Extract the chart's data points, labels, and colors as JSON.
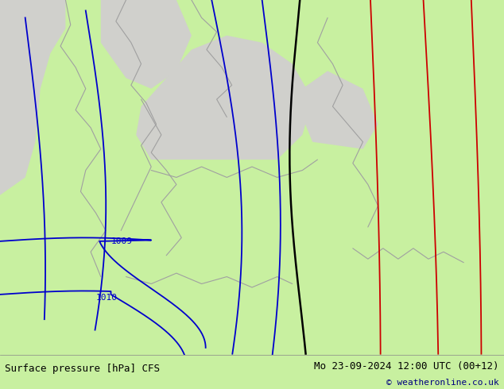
{
  "title_left": "Surface pressure [hPa] CFS",
  "title_right": "Mo 23-09-2024 12:00 UTC (00+12)",
  "copyright": "© weatheronline.co.uk",
  "land_color": "#c8f0a0",
  "sea_color": "#d0d0cc",
  "blue_isobar_color": "#0000cc",
  "black_isobar_color": "#000000",
  "red_isobar_color": "#cc0000",
  "coast_color": "#a0a0a0",
  "fig_width": 6.34,
  "fig_height": 4.9,
  "dpi": 100,
  "bottom_bar_color": "#ffffff",
  "bottom_bar_height": 0.088,
  "text_color": "#000000",
  "title_fontsize": 9,
  "copyright_color": "#000080"
}
